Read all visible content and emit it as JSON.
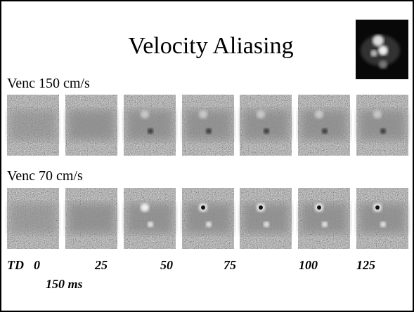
{
  "title": "Velocity Aliasing",
  "rows": [
    {
      "label": "Venc 150 cm/s"
    },
    {
      "label": "Venc 70 cm/s"
    }
  ],
  "time_axis": {
    "label": "TD",
    "values": [
      "0",
      "25",
      "50",
      "75",
      "100",
      "125"
    ],
    "last": "150 ms"
  }
}
